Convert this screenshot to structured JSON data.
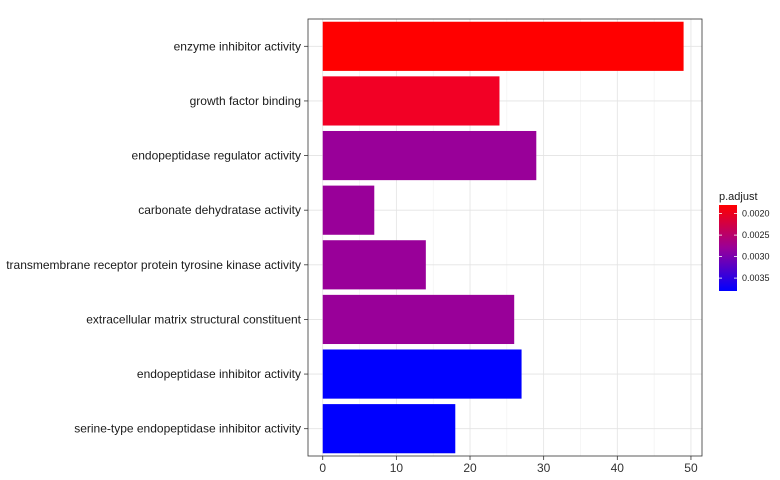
{
  "chart_data": {
    "type": "bar",
    "orientation": "horizontal",
    "categories": [
      "enzyme inhibitor activity",
      "growth factor binding",
      "endopeptidase regulator activity",
      "carbonate dehydratase activity",
      "transmembrane receptor protein tyrosine kinase activity",
      "extracellular matrix structural constituent",
      "endopeptidase inhibitor activity",
      "serine-type endopeptidase inhibitor activity"
    ],
    "values": [
      49,
      24,
      29,
      7,
      14,
      26,
      27,
      18
    ],
    "p_adjust": [
      0.0018,
      0.0021,
      0.0033,
      0.0033,
      0.0033,
      0.0033,
      0.0038,
      0.0038
    ],
    "bar_colors": [
      "#ff0000",
      "#f20025",
      "#990099",
      "#990099",
      "#990099",
      "#990099",
      "#0000ff",
      "#0000ff"
    ],
    "xlim": [
      -2,
      51.5
    ],
    "x_ticks": [
      0,
      10,
      20,
      30,
      40,
      50
    ],
    "grid": true,
    "legend": {
      "title": "p.adjust",
      "position": "right",
      "labels": [
        "0.0020",
        "0.0025",
        "0.0030",
        "0.0035"
      ],
      "tick_values": [
        0.002,
        0.0025,
        0.003,
        0.0035
      ],
      "range": [
        0.0018,
        0.0038
      ],
      "color_low_p": "#ff0000",
      "color_high_p": "#0000ff"
    }
  }
}
